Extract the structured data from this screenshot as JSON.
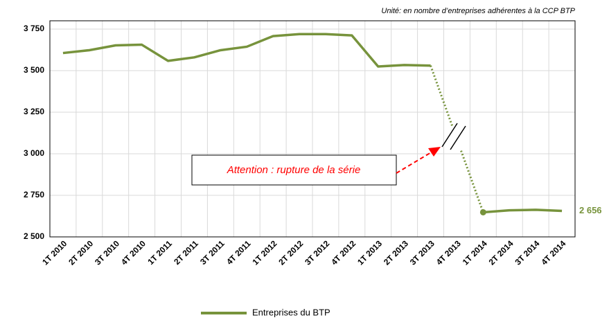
{
  "chart_data": {
    "type": "line",
    "subtitle": "Unité: en nombre d’entreprises adhérentes à la CCP BTP",
    "annotation": "Attention : rupture de la série",
    "categories": [
      "1T 2010",
      "2T 2010",
      "3T 2010",
      "4T 2010",
      "1T 2011",
      "2T 2011",
      "3T 2011",
      "4T 2011",
      "1T 2012",
      "2T 2012",
      "3T 2012",
      "4T 2012",
      "1T 2013",
      "2T 2013",
      "3T 2013",
      "4T 2013",
      "1T 2014",
      "2T 2014",
      "3T 2014",
      "4T 2014"
    ],
    "series": [
      {
        "name": "Entreprises du BTP",
        "color": "#77933c",
        "values": [
          3606,
          3623,
          3652,
          3656,
          3559,
          3580,
          3623,
          3644,
          3708,
          3720,
          3720,
          3712,
          3525,
          3534,
          3530,
          null,
          2648,
          2660,
          2663,
          2656
        ],
        "value_labels": [
          null,
          null,
          null,
          null,
          null,
          null,
          null,
          null,
          null,
          null,
          null,
          null,
          null,
          null,
          null,
          null,
          null,
          null,
          null,
          "2 656"
        ]
      }
    ],
    "ylim": [
      2500,
      3800
    ],
    "yticks": [
      {
        "value": 2500,
        "label": "2 500"
      },
      {
        "value": 2750,
        "label": "2 750"
      },
      {
        "value": 3000,
        "label": "3 000"
      },
      {
        "value": 3250,
        "label": "3 250"
      },
      {
        "value": 3500,
        "label": "3 500"
      },
      {
        "value": 3750,
        "label": "3 750"
      }
    ],
    "grid": true
  }
}
